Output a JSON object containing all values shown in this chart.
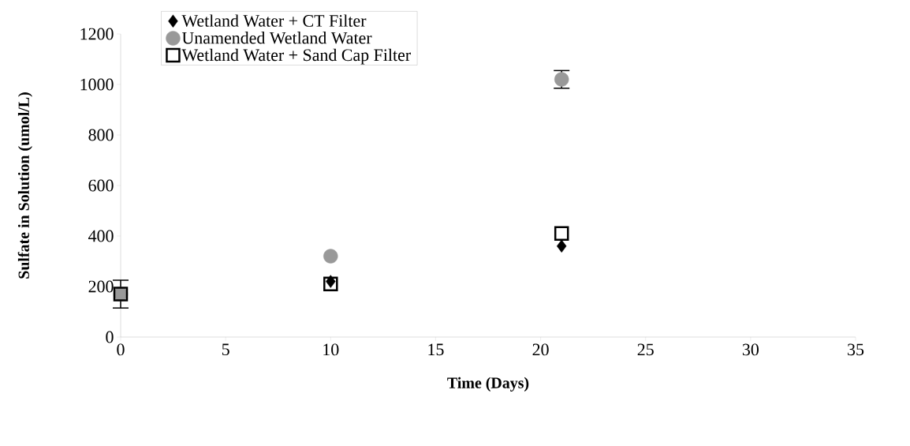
{
  "chart_data": {
    "type": "scatter",
    "xlabel": "Time (Days)",
    "ylabel": "Sulfate in Solution (umol/L)",
    "x": [
      0,
      10,
      21
    ],
    "series": [
      {
        "name": "Wetland Water + CT Filter",
        "color": "#000000",
        "marker": "diamond",
        "values": [
          null,
          220,
          360
        ]
      },
      {
        "name": "Unamended Wetland Water",
        "color": "#999999",
        "marker": "circle",
        "values": [
          170,
          320,
          1020
        ],
        "errors": [
          55,
          null,
          35
        ]
      },
      {
        "name": "Wetland Water + Sand Cap Filter",
        "color": "#000000",
        "marker": "square",
        "values": [
          170,
          210,
          410
        ]
      }
    ],
    "xlim": [
      0,
      35
    ],
    "xticks": [
      0,
      5,
      10,
      15,
      20,
      25,
      30,
      35
    ],
    "ylim": [
      0,
      1200
    ],
    "yticks": [
      0,
      200,
      400,
      600,
      800,
      1000,
      1200
    ],
    "legend": "top left",
    "grid": false
  }
}
